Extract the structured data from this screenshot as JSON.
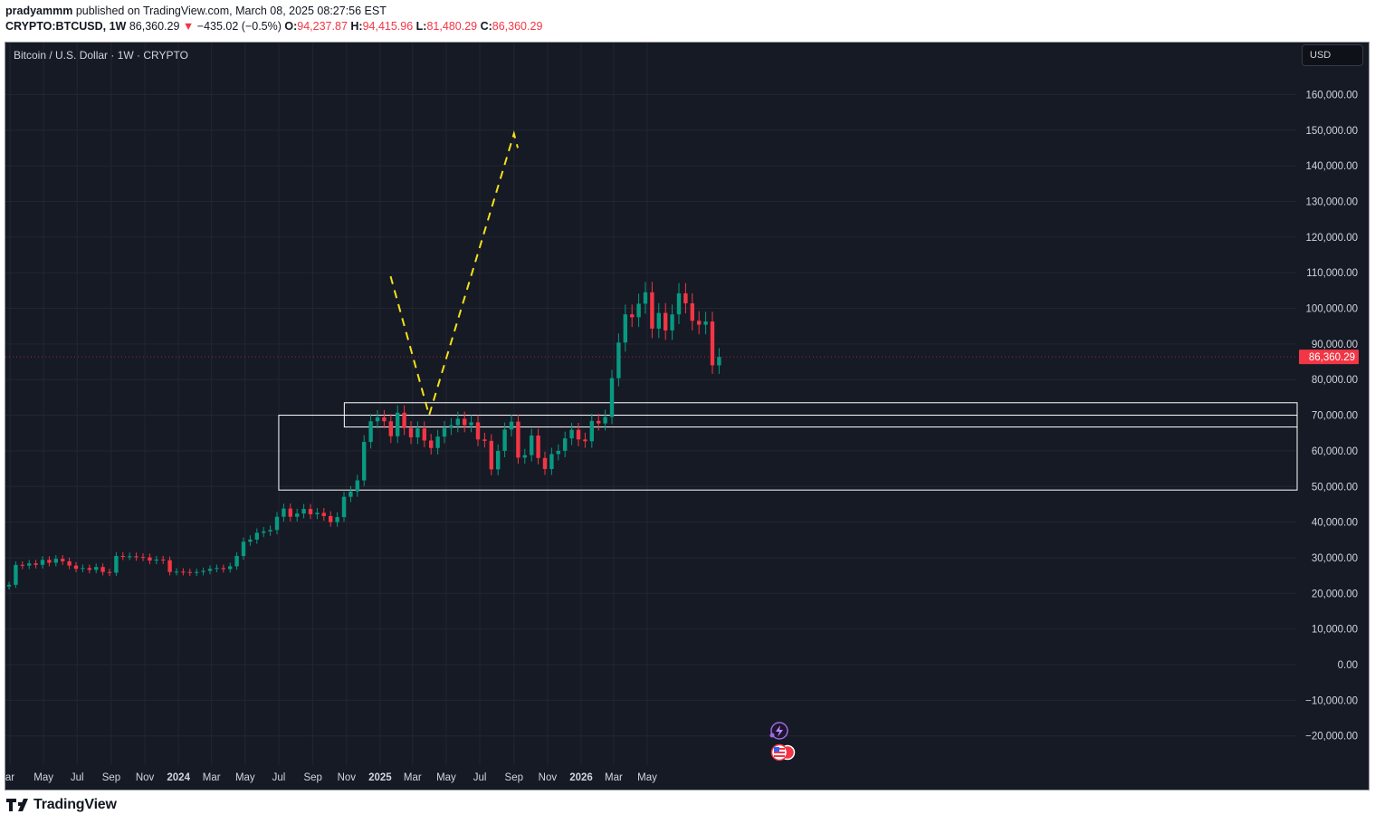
{
  "header": {
    "author": "pradyammm",
    "published_text": "published on TradingView.com, March 08, 2025 08:27:56 EST",
    "symbol": "CRYPTO:BTCUSD, 1W",
    "last_price": "86,360.29",
    "change_arrow": "▼",
    "change": "−435.02 (−0.5%)",
    "open_label": "O:",
    "open": "94,237.87",
    "high_label": "H:",
    "high": "94,415.96",
    "low_label": "L:",
    "low": "81,480.29",
    "close_label": "C:",
    "close": "86,360.29"
  },
  "chart": {
    "symbol_title": "Bitcoin / U.S. Dollar · 1W · CRYPTO",
    "currency_button": "USD",
    "price_tag": "86,360.29",
    "price_tag_value": 86360.29
  },
  "footer": {
    "logo_text": "TradingView"
  },
  "colors": {
    "background": "#161a25",
    "grid": "#232632",
    "up": "#089981",
    "down": "#f23645",
    "projection": "#f5e11a",
    "zone": "#ffffff",
    "text": "#d1d4dc"
  },
  "chart_data": {
    "type": "candlestick",
    "title": "Bitcoin / U.S. Dollar · 1W · CRYPTO",
    "y_axis": {
      "ticks": [
        160000,
        150000,
        140000,
        130000,
        120000,
        110000,
        100000,
        90000,
        80000,
        70000,
        60000,
        50000,
        40000,
        30000,
        20000,
        10000,
        0,
        -10000,
        -20000
      ],
      "tick_labels": [
        "160,000.00",
        "150,000.00",
        "140,000.00",
        "130,000.00",
        "120,000.00",
        "110,000.00",
        "100,000.00",
        "90,000.00",
        "80,000.00",
        "70,000.00",
        "60,000.00",
        "50,000.00",
        "40,000.00",
        "30,000.00",
        "20,000.00",
        "10,000.00",
        "0.00",
        "−10,000.00",
        "−20,000.00"
      ],
      "range": [
        -26000,
        168000
      ]
    },
    "x_axis": {
      "ticks": [
        {
          "label": "ar",
          "date": "2023-03-01",
          "bold": false
        },
        {
          "label": "May",
          "date": "2023-05-01",
          "bold": false
        },
        {
          "label": "Jul",
          "date": "2023-07-01",
          "bold": false
        },
        {
          "label": "Sep",
          "date": "2023-09-01",
          "bold": false
        },
        {
          "label": "Nov",
          "date": "2023-11-01",
          "bold": false
        },
        {
          "label": "2024",
          "date": "2024-01-01",
          "bold": true
        },
        {
          "label": "Mar",
          "date": "2024-03-01",
          "bold": false
        },
        {
          "label": "May",
          "date": "2024-05-01",
          "bold": false
        },
        {
          "label": "Jul",
          "date": "2024-07-01",
          "bold": false
        },
        {
          "label": "Sep",
          "date": "2024-09-01",
          "bold": false
        },
        {
          "label": "Nov",
          "date": "2024-11-01",
          "bold": false
        },
        {
          "label": "2025",
          "date": "2025-01-01",
          "bold": true
        },
        {
          "label": "Mar",
          "date": "2025-03-01",
          "bold": false
        },
        {
          "label": "May",
          "date": "2025-05-01",
          "bold": false
        },
        {
          "label": "Jul",
          "date": "2025-07-01",
          "bold": false
        },
        {
          "label": "Sep",
          "date": "2025-09-01",
          "bold": false
        },
        {
          "label": "Nov",
          "date": "2025-11-01",
          "bold": false
        },
        {
          "label": "2026",
          "date": "2026-01-01",
          "bold": true
        },
        {
          "label": "Mar",
          "date": "2026-03-01",
          "bold": false
        },
        {
          "label": "May",
          "date": "2026-05-01",
          "bold": false
        }
      ]
    },
    "candles_weekly_close": [
      22400,
      28000,
      27800,
      28400,
      28000,
      29400,
      28600,
      29700,
      29000,
      27800,
      26900,
      27100,
      26600,
      27400,
      26000,
      25800,
      30500,
      30400,
      30400,
      30200,
      30100,
      29200,
      29500,
      29300,
      26000,
      26100,
      26000,
      25800,
      26000,
      26300,
      26900,
      27100,
      26800,
      27600,
      30500,
      34500,
      35100,
      37000,
      37400,
      37800,
      41500,
      43800,
      41500,
      42400,
      43700,
      42200,
      42600,
      41700,
      40000,
      41400,
      47100,
      48600,
      51700,
      62500,
      68300,
      69400,
      68300,
      64100,
      70700,
      66400,
      63800,
      66300,
      62900,
      60800,
      64000,
      66400,
      67200,
      69000,
      67200,
      68000,
      63200,
      62800,
      54800,
      60000,
      66000,
      68200,
      58100,
      58800,
      64300,
      58000,
      54900,
      59100,
      60000,
      63500,
      65900,
      63200,
      62700,
      68400,
      67700,
      69500,
      80400,
      90400,
      98300,
      97500,
      101300,
      104500,
      94300,
      98700,
      93800,
      98300,
      104200,
      101400,
      96500,
      95400,
      96300,
      84000,
      86360
    ],
    "zones": [
      {
        "x_start": "2024-07-01",
        "x_end": "right-edge",
        "y_top": 70000,
        "y_bottom": 49000
      },
      {
        "x_start": "2024-10-28",
        "x_end": "right-edge",
        "y_top": 73500,
        "y_bottom": 66700
      }
    ],
    "projection_path": [
      {
        "date": "2025-01-20",
        "price": 109000
      },
      {
        "date": "2025-03-31",
        "price": 70000
      },
      {
        "date": "2025-09-01",
        "price": 149000
      },
      {
        "date": "2025-09-08",
        "price": 145000
      }
    ]
  }
}
